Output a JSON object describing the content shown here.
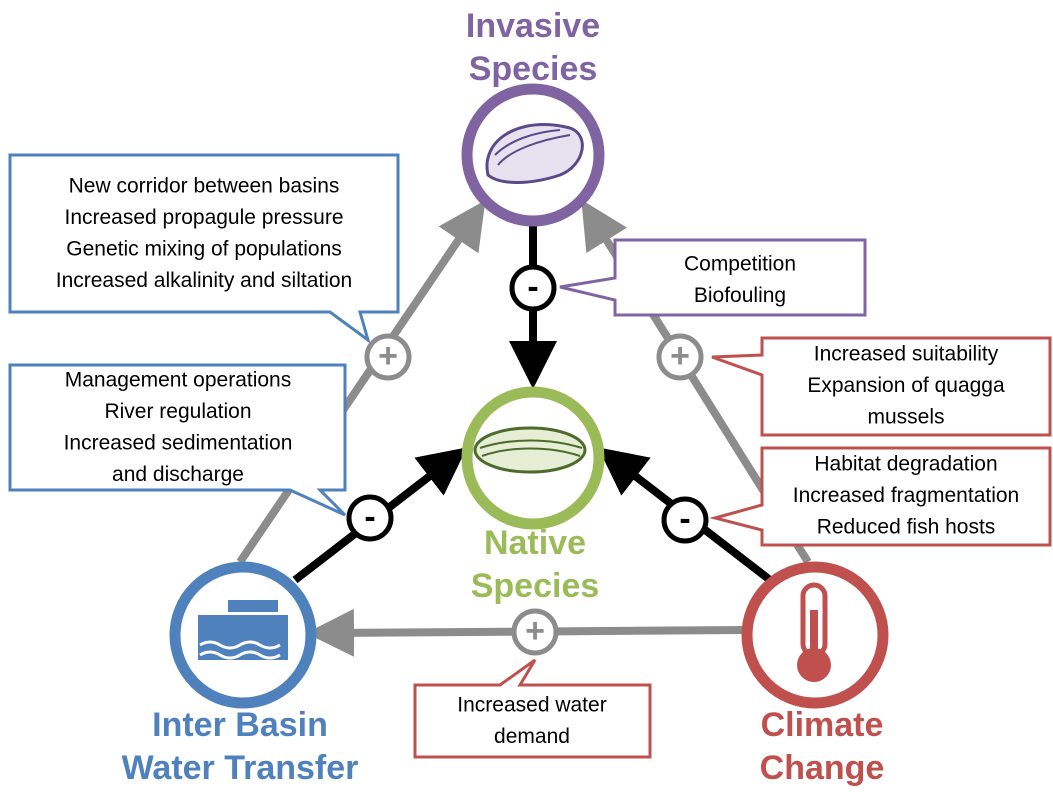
{
  "nodes": [
    {
      "label": [
        "Invasive",
        "Species"
      ]
    },
    {
      "label": [
        "Native",
        "Species"
      ]
    },
    {
      "label": [
        "Inter Basin",
        "Water Transfer"
      ]
    },
    {
      "label": [
        "Climate",
        "Change"
      ]
    }
  ],
  "edges": [
    {
      "sign": "+"
    },
    {
      "sign": "+"
    },
    {
      "sign": "+"
    },
    {
      "sign": "-"
    },
    {
      "sign": "-"
    },
    {
      "sign": "-"
    }
  ],
  "callouts": [
    {
      "lines": [
        "New corridor between basins",
        "Increased propagule pressure",
        "Genetic mixing of populations",
        "Increased alkalinity and siltation"
      ]
    },
    {
      "lines": [
        "Management operations",
        "River regulation",
        "Increased sedimentation",
        "and discharge"
      ]
    },
    {
      "lines": [
        "Competition",
        "Biofouling"
      ]
    },
    {
      "lines": [
        "Increased suitability",
        "Expansion of quagga",
        "mussels"
      ]
    },
    {
      "lines": [
        "Habitat degradation",
        "Increased fragmentation",
        "Reduced fish hosts"
      ]
    },
    {
      "lines": [
        "Increased water",
        "demand"
      ]
    }
  ]
}
